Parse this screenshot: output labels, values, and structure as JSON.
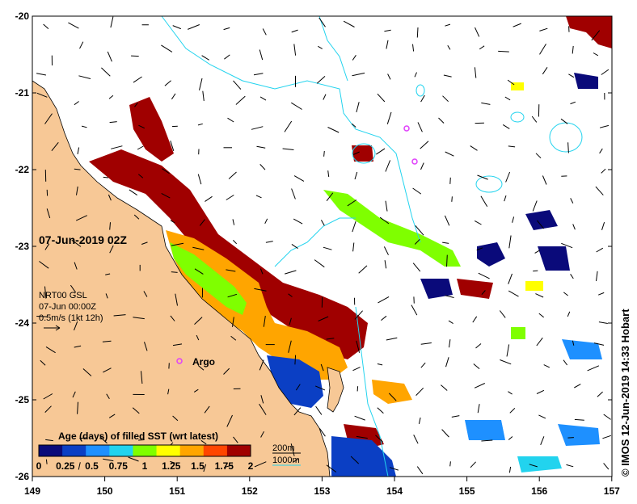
{
  "map_title": "07-Jun-2019 02Z",
  "current_info": {
    "line1": "NRT00 GSL",
    "line2": "07-Jun 00:00Z",
    "line3": "0.5m/s (1kt 12h)"
  },
  "argo_label": "Argo",
  "legend": {
    "title": "Age (days) of filled SST (wrt latest)",
    "ticks": [
      "0",
      "0.25",
      "0.5",
      "0.75",
      "1",
      "1.25",
      "1.5",
      "1.75",
      "2"
    ],
    "colors": [
      "#0a0a7a",
      "#0b3fc4",
      "#1e90ff",
      "#22d3ee",
      "#7fff00",
      "#ffff00",
      "#ffa500",
      "#ff4500",
      "#a00000"
    ]
  },
  "depth_contours": {
    "c200": "200m",
    "c1000": "1000m"
  },
  "lat_labels": [
    "-20",
    "-21",
    "-22",
    "-23",
    "-24",
    "-25",
    "-26"
  ],
  "lon_labels": [
    "149",
    "150",
    "151",
    "152",
    "153",
    "154",
    "155",
    "156",
    "157"
  ],
  "credit": "© IMOS 12-Jun-2019 14:33 Hobart",
  "colors": {
    "land": "#f7c896",
    "contour": "#22d3ee",
    "argo": "#e040fb",
    "red": "#a00000",
    "orange": "#ffa500",
    "green": "#7fff00",
    "navy": "#0a0a7a",
    "blue": "#0b3fc4",
    "lightblue": "#1e90ff"
  }
}
